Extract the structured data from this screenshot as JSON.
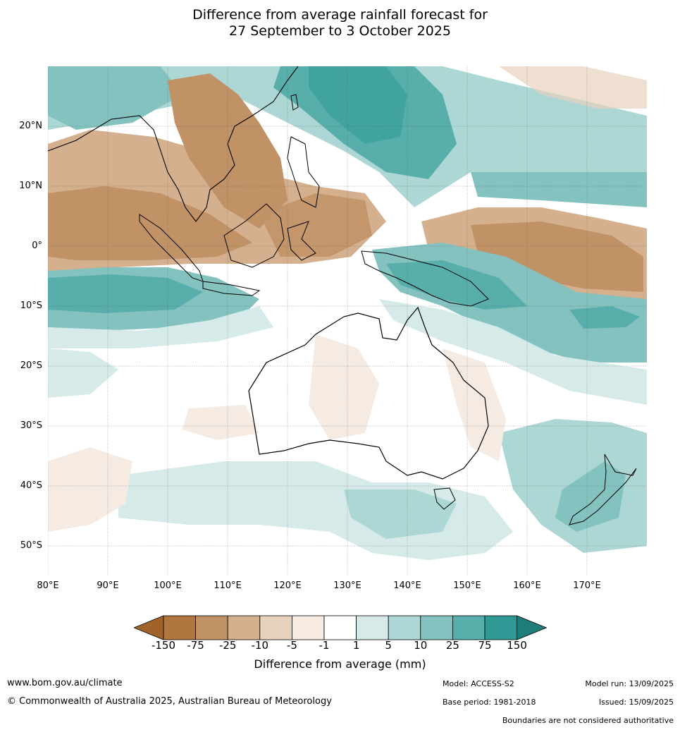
{
  "title_line1": "Difference from average rainfall forecast for",
  "title_line2": "27 September to 3 October 2025",
  "lat_labels": [
    "20°N",
    "10°N",
    "0°",
    "10°S",
    "20°S",
    "30°S",
    "40°S",
    "50°S"
  ],
  "lon_labels": [
    "80°E",
    "90°E",
    "100°E",
    "110°E",
    "120°E",
    "130°E",
    "140°E",
    "150°E",
    "160°E",
    "170°E"
  ],
  "colorbar": {
    "title": "Difference from average (mm)",
    "ticks": [
      "-150",
      "-75",
      "-25",
      "-10",
      "-5",
      "-1",
      "1",
      "5",
      "10",
      "25",
      "75",
      "150"
    ],
    "colors": [
      "#a0632a",
      "#b07640",
      "#c19266",
      "#d4b08e",
      "#e7d2bd",
      "#f5ebe3",
      "#ffffff",
      "#d6ebe9",
      "#acd7d4",
      "#83c2bf",
      "#58aeaa",
      "#2f9a95",
      "#1e7d78"
    ]
  },
  "footer": {
    "url": "www.bom.gov.au/climate",
    "copyright": "© Commonwealth of Australia 2025, Australian Bureau of Meteorology",
    "model": "Model: ACCESS-S2",
    "base_period": "Base period: 1981-2018",
    "model_run": "Model run: 13/09/2025",
    "issued": "Issued: 15/09/2025",
    "disclaimer": "Boundaries are not considered authoritative"
  }
}
